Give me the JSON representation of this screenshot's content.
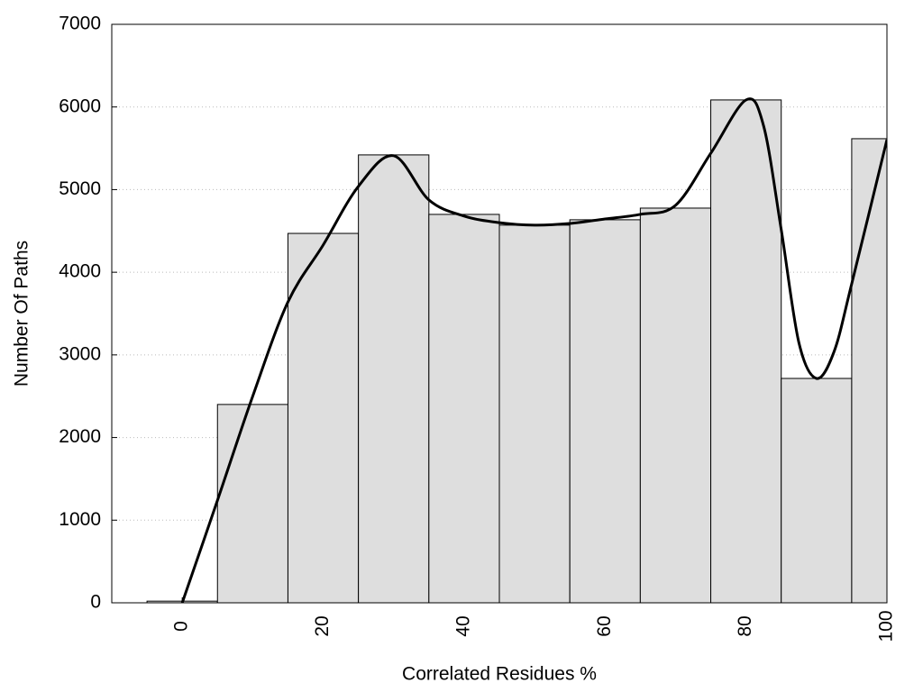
{
  "chart_data": {
    "type": "histogram",
    "x_label": "Correlated Residues %",
    "y_label": "Number Of Paths",
    "bins": [
      -5,
      5,
      15,
      25,
      35,
      45,
      55,
      65,
      75,
      85,
      95,
      105
    ],
    "values": [
      20,
      2400,
      4470,
      5420,
      4700,
      4570,
      4635,
      4776,
      6085,
      2715,
      5616
    ],
    "color": "#dedede",
    "curve": {
      "color": "#000000",
      "x": [
        0,
        5,
        10,
        15,
        20,
        25,
        30,
        35,
        40,
        45,
        50,
        55,
        60,
        65,
        70,
        75,
        80,
        82.5,
        85,
        87.5,
        90,
        92.5,
        95,
        100
      ],
      "values": [
        0,
        1240,
        2500,
        3640,
        4330,
        5040,
        5410,
        4875,
        4680,
        4600,
        4570,
        4590,
        4645,
        4700,
        4810,
        5440,
        6085,
        5770,
        4515,
        3150,
        2715,
        3040,
        3860,
        5605
      ]
    },
    "xlim": [
      -10,
      100
    ],
    "xticks": [
      0,
      20,
      40,
      60,
      80,
      100
    ],
    "ylim": [
      0,
      7000
    ],
    "yticks": [
      0,
      1000,
      2000,
      3000,
      4000,
      5000,
      6000,
      7000
    ],
    "grid": true
  }
}
